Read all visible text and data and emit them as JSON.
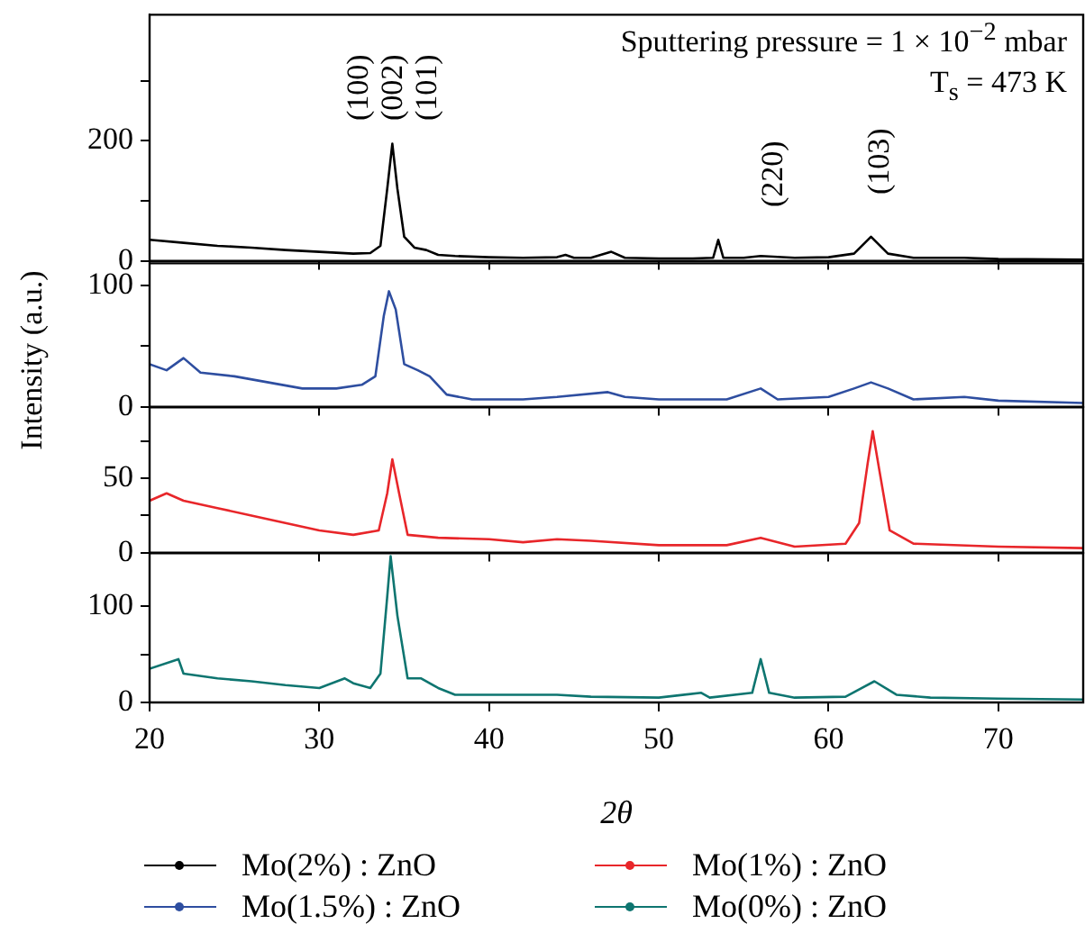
{
  "chart_data": [
    {
      "type": "line",
      "ylabel": "Intensity (a.u.)",
      "xlim": [
        20,
        75
      ],
      "xticks": [
        20,
        30,
        40,
        50,
        60,
        70
      ],
      "ylim": [
        0,
        410
      ],
      "yticks": [
        0,
        {
          "value": 100,
          "label": null
        },
        200,
        {
          "value": 300,
          "label": null
        }
      ],
      "tick_labels": "y",
      "legend": "bottom",
      "line_style": "solid",
      "annotations": [
        "Sputtering pressure = 1 × 10$^{−2}$ mbar",
        "T$_{s}$ = 473 K",
        "(100)",
        "(002)",
        "(101)",
        "(220)",
        "(103)"
      ],
      "series": [
        {
          "name": "Mo(2%) : ZnO",
          "color": "#000000",
          "x": [
            20,
            22,
            24,
            26,
            28,
            30,
            32,
            33,
            33.6,
            34,
            34.3,
            34.6,
            35,
            35.6,
            36.3,
            37,
            38,
            40,
            42,
            44,
            44.5,
            45,
            46,
            47.2,
            48,
            50,
            52,
            53.2,
            53.5,
            53.8,
            55,
            56,
            58,
            60,
            61.5,
            62.5,
            63.5,
            65,
            68,
            70,
            75
          ],
          "values": [
            35,
            30,
            25,
            22,
            18,
            15,
            12,
            13,
            25,
            120,
            195,
            120,
            40,
            22,
            18,
            10,
            8,
            6,
            5,
            6,
            10,
            5,
            5,
            15,
            5,
            4,
            4,
            5,
            35,
            5,
            5,
            8,
            5,
            6,
            12,
            40,
            12,
            5,
            5,
            3,
            2
          ]
        }
      ]
    },
    {
      "type": "line",
      "xlim": [
        20,
        75
      ],
      "xticks": [
        20,
        30,
        40,
        50,
        60,
        70
      ],
      "ylim": [
        0,
        118
      ],
      "yticks": [
        0,
        {
          "value": 50,
          "label": null
        },
        100
      ],
      "tick_labels": "y",
      "legend": "bottom",
      "line_style": "solid",
      "series": [
        {
          "name": "Mo(1.5%) : ZnO",
          "color": "#2e4ea0",
          "x": [
            20,
            21,
            22,
            23,
            25,
            27,
            29,
            31,
            32.5,
            33.3,
            33.8,
            34.1,
            34.5,
            35,
            35.8,
            36.5,
            37.5,
            39,
            42,
            44,
            47,
            48,
            50,
            54,
            56,
            57,
            60,
            61.5,
            62.5,
            63.5,
            65,
            68,
            70,
            75
          ],
          "values": [
            35,
            30,
            40,
            28,
            25,
            20,
            15,
            15,
            18,
            25,
            75,
            95,
            80,
            35,
            30,
            25,
            10,
            6,
            6,
            8,
            12,
            8,
            6,
            6,
            15,
            6,
            8,
            15,
            20,
            15,
            6,
            8,
            5,
            3
          ]
        }
      ]
    },
    {
      "type": "line",
      "xlim": [
        20,
        75
      ],
      "xticks": [
        20,
        30,
        40,
        50,
        60,
        70
      ],
      "ylim": [
        0,
        98
      ],
      "yticks": [
        0,
        {
          "value": 25,
          "label": null
        },
        50,
        {
          "value": 75,
          "label": null
        }
      ],
      "tick_labels": "y",
      "legend": "bottom",
      "line_style": "solid",
      "series": [
        {
          "name": "Mo(1%) : ZnO",
          "color": "#e8262a",
          "x": [
            20,
            21,
            22,
            24,
            26,
            28,
            30,
            32,
            33.5,
            34,
            34.3,
            34.7,
            35.2,
            37,
            40,
            42,
            44,
            46,
            50,
            54,
            56,
            58,
            61,
            61.8,
            62.3,
            62.6,
            63,
            63.6,
            65,
            70,
            75
          ],
          "values": [
            35,
            40,
            35,
            30,
            25,
            20,
            15,
            12,
            15,
            40,
            63,
            40,
            12,
            10,
            9,
            7,
            9,
            8,
            5,
            5,
            10,
            4,
            6,
            20,
            60,
            82,
            55,
            15,
            6,
            4,
            3
          ]
        }
      ]
    },
    {
      "type": "line",
      "xlabel": "2θ",
      "xlim": [
        20,
        75
      ],
      "xticks": [
        20,
        30,
        40,
        50,
        60,
        70
      ],
      "ylim": [
        0,
        155
      ],
      "yticks": [
        0,
        {
          "value": 50,
          "label": null
        },
        100
      ],
      "legend": "bottom",
      "line_style": "solid",
      "series": [
        {
          "name": "Mo(0%) : ZnO",
          "color": "#0e7570",
          "x": [
            20,
            21.7,
            22,
            24,
            26,
            28,
            30,
            31.5,
            32,
            33,
            33.6,
            34,
            34.2,
            34.6,
            35.2,
            36,
            37,
            38,
            40,
            44,
            46,
            50,
            52.5,
            53,
            55.5,
            56,
            56.5,
            58,
            61,
            62.7,
            64,
            66,
            70,
            75
          ],
          "values": [
            35,
            45,
            30,
            25,
            22,
            18,
            15,
            25,
            20,
            15,
            30,
            110,
            152,
            90,
            25,
            25,
            15,
            8,
            8,
            8,
            6,
            5,
            10,
            5,
            10,
            45,
            10,
            5,
            6,
            22,
            8,
            5,
            4,
            3
          ]
        }
      ]
    }
  ]
}
